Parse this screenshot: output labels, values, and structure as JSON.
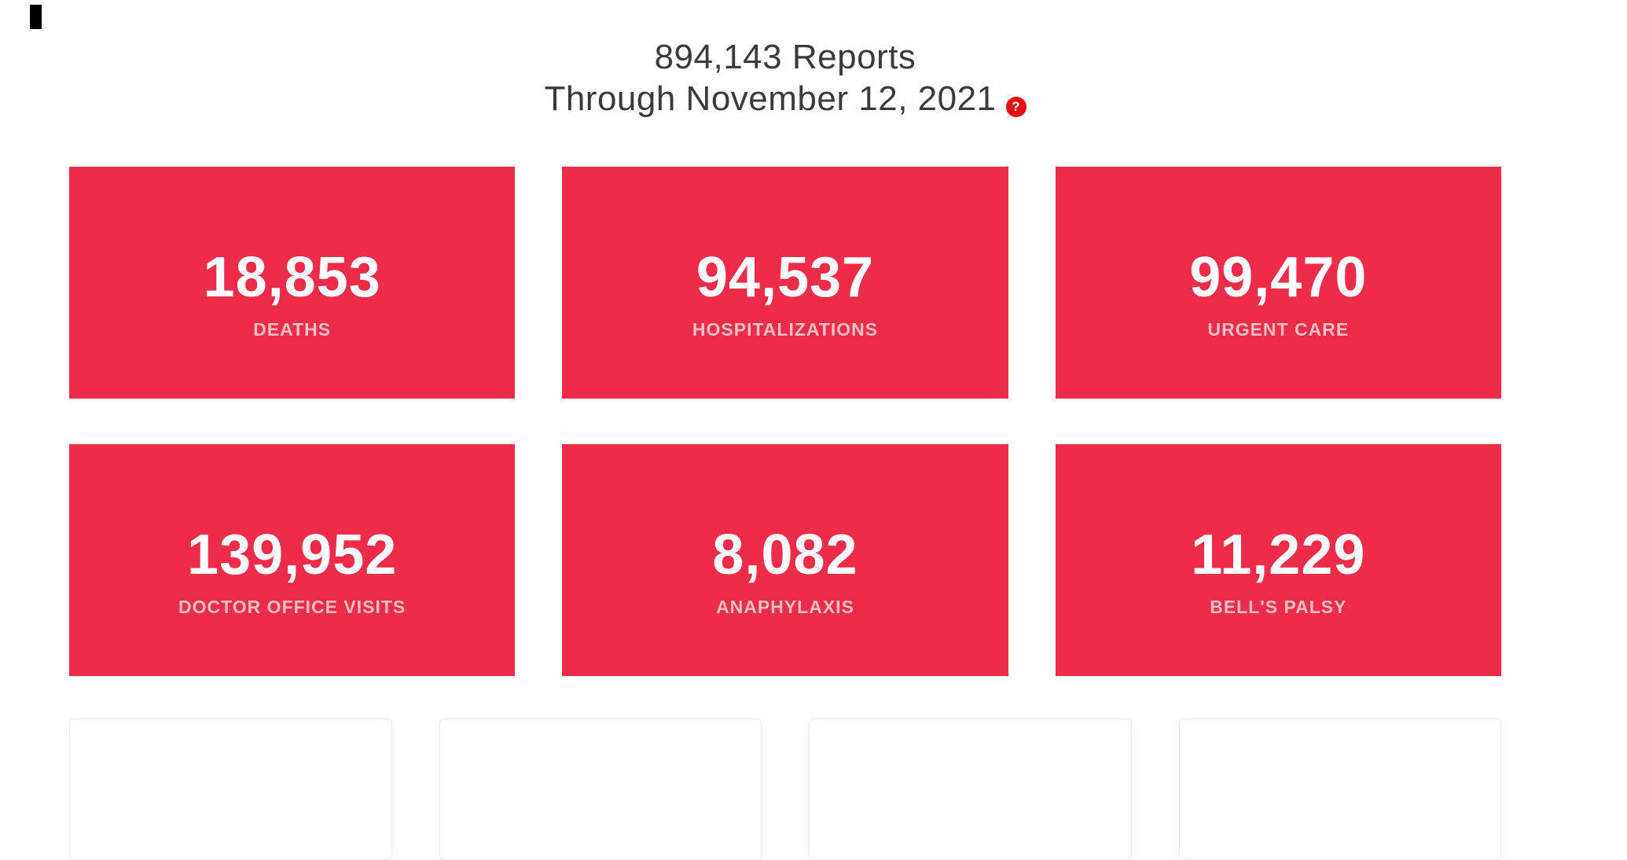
{
  "theme": {
    "accent_red": "#ec2c48",
    "help_icon_red": "#e60f0f",
    "title_text_color": "#3b3b3b",
    "stat_number_color": "#ffffff",
    "stat_label_color": "#f5bfc8",
    "placeholder_border": "#ececec",
    "page_background": "#ffffff"
  },
  "header": {
    "title_line1": "894,143 Reports",
    "title_line2": "Through November 12, 2021",
    "help_icon_glyph": "?"
  },
  "stats": {
    "cards": [
      {
        "value": "18,853",
        "label": "DEATHS"
      },
      {
        "value": "94,537",
        "label": "HOSPITALIZATIONS"
      },
      {
        "value": "99,470",
        "label": "URGENT CARE"
      },
      {
        "value": "139,952",
        "label": "DOCTOR OFFICE VISITS"
      },
      {
        "value": "8,082",
        "label": "ANAPHYLAXIS"
      },
      {
        "value": "11,229",
        "label": "BELL'S PALSY"
      }
    ]
  },
  "bottom_row": {
    "visible_card_count": 4
  }
}
